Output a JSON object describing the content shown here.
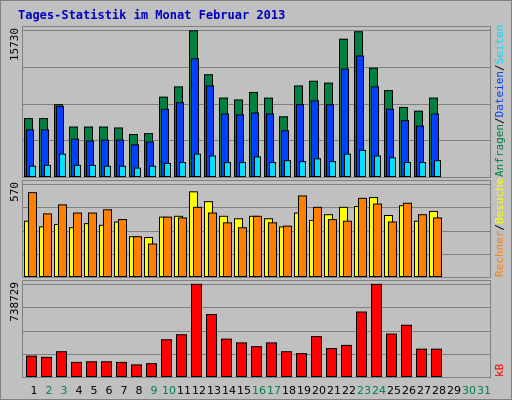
{
  "title": "Tages-Statistik im Monat Februar 2013",
  "colors": {
    "anfragen": "#008040",
    "dateien": "#0040ff",
    "seiten": "#00e0ff",
    "rechner": "#ff8000",
    "besuche": "#ffff00",
    "kb": "#ff0000",
    "weekend_day": "#00804a",
    "weekday": "#000000",
    "background": "#c0c0c0",
    "text_blue": "#0000c0"
  },
  "chart_data": [
    {
      "type": "bar",
      "panel": "top",
      "ytick": "15730",
      "ylim": [
        0,
        15730
      ],
      "categories": [
        "1",
        "2",
        "3",
        "4",
        "5",
        "6",
        "7",
        "8",
        "9",
        "10",
        "11",
        "12",
        "13",
        "14",
        "15",
        "16",
        "17",
        "18",
        "19",
        "20",
        "21",
        "22",
        "23",
        "24",
        "25",
        "26",
        "27",
        "28"
      ],
      "series": [
        {
          "name": "Anfragen",
          "values": [
            6300,
            6300,
            7800,
            5400,
            5400,
            5400,
            5300,
            4600,
            4700,
            8600,
            9700,
            15700,
            11000,
            8500,
            8300,
            9100,
            8500,
            6500,
            9800,
            10300,
            10100,
            14800,
            15600,
            11700,
            9300,
            7500,
            7100,
            8500
          ]
        },
        {
          "name": "Dateien",
          "values": [
            5100,
            5100,
            7600,
            4100,
            3900,
            4000,
            4000,
            3500,
            3800,
            7300,
            8000,
            12700,
            9800,
            6800,
            6700,
            6900,
            6800,
            5000,
            7800,
            8200,
            7800,
            11600,
            13000,
            9700,
            7300,
            6100,
            5500,
            6800
          ]
        },
        {
          "name": "Seiten",
          "values": [
            1200,
            1300,
            2500,
            1300,
            1300,
            1200,
            1200,
            1000,
            1200,
            1500,
            1600,
            2500,
            2300,
            1600,
            1600,
            2200,
            1600,
            1800,
            1700,
            2000,
            1700,
            2500,
            2900,
            2300,
            2100,
            1600,
            1600,
            1800
          ]
        }
      ]
    },
    {
      "type": "bar",
      "panel": "middle",
      "ytick": "570",
      "ylim": [
        0,
        570
      ],
      "categories": [
        "1",
        "2",
        "3",
        "4",
        "5",
        "6",
        "7",
        "8",
        "9",
        "10",
        "11",
        "12",
        "13",
        "14",
        "15",
        "16",
        "17",
        "18",
        "19",
        "20",
        "21",
        "22",
        "23",
        "24",
        "25",
        "26",
        "27",
        "28"
      ],
      "series": [
        {
          "name": "Besuche",
          "values": [
            345,
            310,
            325,
            305,
            330,
            320,
            340,
            250,
            245,
            370,
            375,
            525,
            465,
            375,
            360,
            375,
            360,
            310,
            395,
            350,
            385,
            430,
            435,
            490,
            380,
            440,
            345,
            405
          ]
        },
        {
          "name": "Rechner",
          "values": [
            520,
            390,
            445,
            395,
            395,
            415,
            355,
            250,
            205,
            370,
            365,
            430,
            395,
            335,
            305,
            375,
            335,
            315,
            500,
            430,
            355,
            345,
            485,
            450,
            340,
            455,
            385,
            365
          ]
        }
      ]
    },
    {
      "type": "bar",
      "panel": "bottom",
      "ytick": "738729",
      "ylim": [
        0,
        738729
      ],
      "categories": [
        "1",
        "2",
        "3",
        "4",
        "5",
        "6",
        "7",
        "8",
        "9",
        "10",
        "11",
        "12",
        "13",
        "14",
        "15",
        "16",
        "17",
        "18",
        "19",
        "20",
        "21",
        "22",
        "23",
        "24",
        "25",
        "26",
        "27",
        "28"
      ],
      "series": [
        {
          "name": "kB",
          "values": [
            170000,
            160000,
            205000,
            120000,
            125000,
            125000,
            120000,
            100000,
            110000,
            300000,
            340000,
            740000,
            500000,
            305000,
            275000,
            245000,
            275000,
            205000,
            190000,
            325000,
            230000,
            255000,
            520000,
            740000,
            345000,
            415000,
            225000,
            225000
          ]
        }
      ]
    }
  ],
  "day_labels": [
    {
      "label": "1",
      "weekend": false
    },
    {
      "label": "2",
      "weekend": true
    },
    {
      "label": "3",
      "weekend": true
    },
    {
      "label": "4",
      "weekend": false
    },
    {
      "label": "5",
      "weekend": false
    },
    {
      "label": "6",
      "weekend": false
    },
    {
      "label": "7",
      "weekend": false
    },
    {
      "label": "8",
      "weekend": false
    },
    {
      "label": "9",
      "weekend": true
    },
    {
      "label": "10",
      "weekend": true
    },
    {
      "label": "11",
      "weekend": false
    },
    {
      "label": "12",
      "weekend": false
    },
    {
      "label": "13",
      "weekend": false
    },
    {
      "label": "14",
      "weekend": false
    },
    {
      "label": "15",
      "weekend": false
    },
    {
      "label": "16",
      "weekend": true
    },
    {
      "label": "17",
      "weekend": true
    },
    {
      "label": "18",
      "weekend": false
    },
    {
      "label": "19",
      "weekend": false
    },
    {
      "label": "20",
      "weekend": false
    },
    {
      "label": "21",
      "weekend": false
    },
    {
      "label": "22",
      "weekend": false
    },
    {
      "label": "23",
      "weekend": true
    },
    {
      "label": "24",
      "weekend": true
    },
    {
      "label": "25",
      "weekend": false
    },
    {
      "label": "26",
      "weekend": false
    },
    {
      "label": "27",
      "weekend": false
    },
    {
      "label": "28",
      "weekend": false
    },
    {
      "label": "29",
      "weekend": false
    },
    {
      "label": "30",
      "weekend": true
    },
    {
      "label": "31",
      "weekend": true
    }
  ],
  "legend_top": [
    "Anfragen",
    "/",
    "Dateien",
    "/",
    "Seiten"
  ],
  "legend_mid": [
    "Rechner",
    "/",
    "Besuche"
  ],
  "legend_bottom": "kB"
}
